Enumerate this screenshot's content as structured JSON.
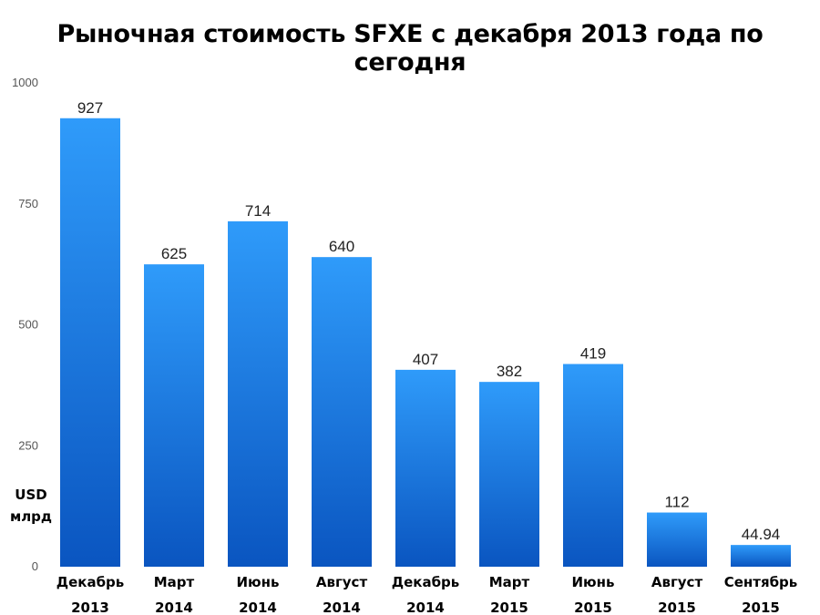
{
  "chart_data": {
    "type": "bar",
    "title": "Рыночная стоимость SFXE с декабря 2013 года по сегодня",
    "ylabel_lines": [
      "USD",
      "млрд"
    ],
    "ylim": [
      0,
      1000
    ],
    "yticks": [
      0,
      250,
      500,
      750,
      1000
    ],
    "categories": [
      [
        "Декабрь",
        "2013"
      ],
      [
        "Март",
        "2014"
      ],
      [
        "Июнь",
        "2014"
      ],
      [
        "Август",
        "2014"
      ],
      [
        "Декабрь",
        "2014"
      ],
      [
        "Март",
        "2015"
      ],
      [
        "Июнь",
        "2015"
      ],
      [
        "Август",
        "2015"
      ],
      [
        "Сентябрь",
        "2015"
      ]
    ],
    "values": [
      927,
      625,
      714,
      640,
      407,
      382,
      419,
      112,
      44.94
    ],
    "value_labels": [
      "927",
      "625",
      "714",
      "640",
      "407",
      "382",
      "419",
      "112",
      "44.94"
    ],
    "grid": false,
    "colors": {
      "bar_top": "#2f9bfa",
      "bar_bottom": "#0a55c0"
    }
  }
}
